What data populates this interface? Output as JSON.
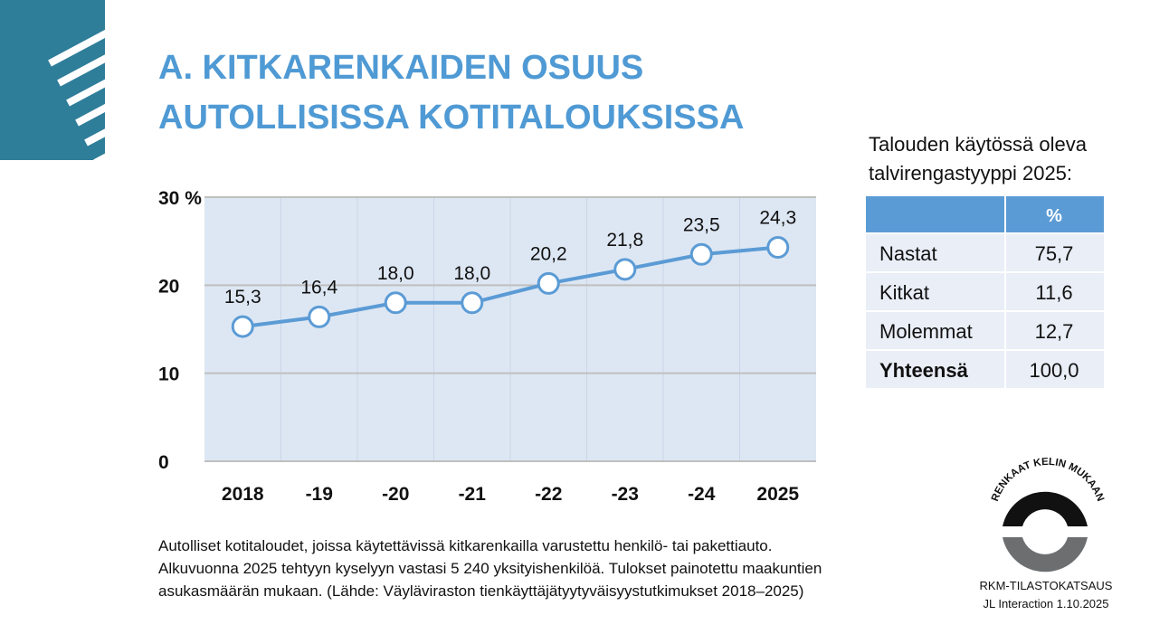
{
  "slide": {
    "title": [
      "A. KITKARENKAIDEN OSUUS",
      "AUTOLLISISSA KOTITALOUKSISSA"
    ],
    "note": [
      "Autolliset kotitaloudet, joissa käytettävissä kitkarenkailla varustettu henkilö- tai pakettiauto.",
      "Alkuvuonna 2025 tehtyyn kyselyyn vastasi 5 240 yksityishenkilöä. Tulokset painotettu maakuntien",
      "asukasmäärän mukaan. (Lähde: Väyläviraston tienkäyttäjätyytyväisyystutkimukset 2018–2025)"
    ],
    "logo": "RENKAAT KELIN MUKAAN",
    "footer": [
      "RKM-TILASTOKATSAUS",
      "JL Interaction 1.10.2025"
    ]
  },
  "chart_data": {
    "type": "line",
    "categories": [
      "2018",
      "-19",
      "-20",
      "-21",
      "-22",
      "-23",
      "-24",
      "2025"
    ],
    "values": [
      15.3,
      16.4,
      18.0,
      18.0,
      20.2,
      21.8,
      23.5,
      24.3
    ],
    "value_labels": [
      "15,3",
      "16,4",
      "18,0",
      "18,0",
      "20,2",
      "21,8",
      "23,5",
      "24,3"
    ],
    "color": "#5b9bd5",
    "ylim": [
      0,
      30
    ],
    "yticks": [
      0,
      10,
      20,
      {
        "value": 30,
        "label": "30 %"
      }
    ],
    "grid": true
  },
  "table": {
    "title": [
      "Talouden käytössä oleva",
      "talvirengastyyppi 2025:"
    ],
    "header": "%",
    "rows": [
      [
        "Nastat",
        "75,7"
      ],
      [
        "Kitkat",
        "11,6"
      ],
      [
        "Molemmat",
        "12,7"
      ],
      [
        "Yhteensä",
        "100,0"
      ]
    ]
  }
}
